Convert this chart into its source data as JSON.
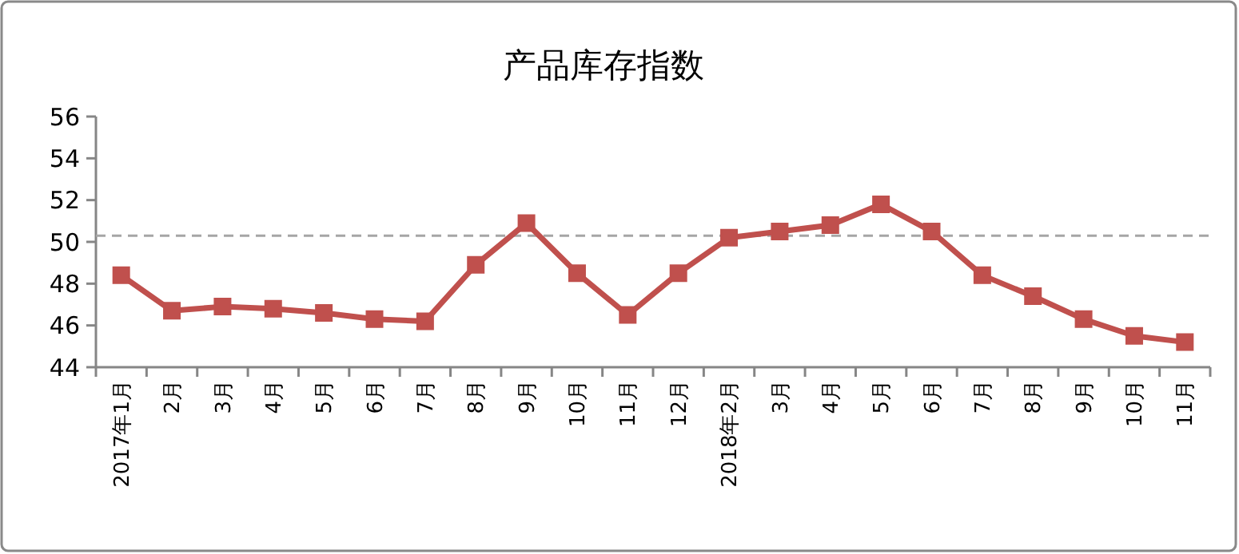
{
  "chart_data": {
    "type": "line",
    "title": "产品库存指数",
    "categories": [
      "2017年1月",
      "2月",
      "3月",
      "4月",
      "5月",
      "6月",
      "7月",
      "8月",
      "9月",
      "10月",
      "11月",
      "12月",
      "2018年2月",
      "3月",
      "4月",
      "5月",
      "6月",
      "7月",
      "8月",
      "9月",
      "10月",
      "11月"
    ],
    "series": [
      {
        "color": "#c0504d",
        "values": [
          48.4,
          46.7,
          46.9,
          46.8,
          46.6,
          46.3,
          46.2,
          48.9,
          50.9,
          48.5,
          46.5,
          48.5,
          50.2,
          50.5,
          50.8,
          51.8,
          50.5,
          48.4,
          47.4,
          46.3,
          45.5,
          45.2
        ]
      }
    ],
    "ylim": [
      44,
      56
    ],
    "yticks": [
      44,
      46,
      48,
      50,
      52,
      54,
      56
    ],
    "grid": false,
    "marker": "square",
    "line_style": "solid",
    "ref_lines": [
      {
        "axis": "y",
        "value": 50.3,
        "color": "#a6a6a6",
        "line_style": "dashed"
      }
    ]
  }
}
